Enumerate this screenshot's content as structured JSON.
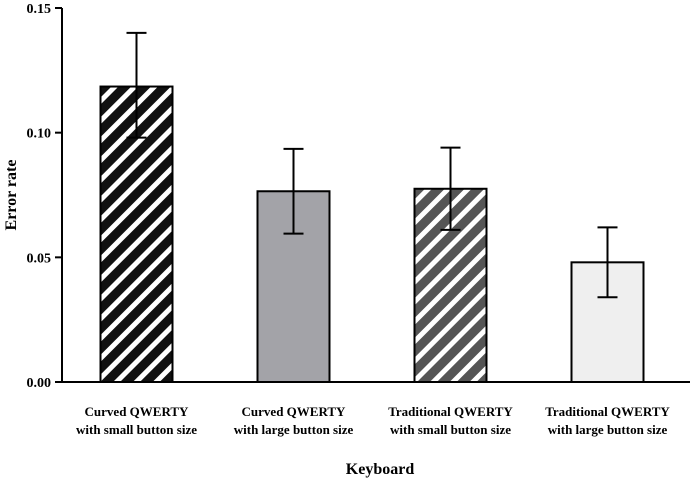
{
  "chart_data": {
    "type": "bar",
    "title": "",
    "xlabel": "Keyboard",
    "ylabel": "Error rate",
    "ylim": [
      0,
      0.15
    ],
    "yticks": [
      "0.00",
      "0.05",
      "0.10",
      "0.15"
    ],
    "ytick_values": [
      0,
      0.05,
      0.1,
      0.15
    ],
    "grid": false,
    "legend": "none",
    "categories": [
      [
        "Curved QWERTY",
        "with small button size"
      ],
      [
        "Curved QWERTY",
        "with large button size"
      ],
      [
        "Traditional QWERTY",
        "with small button size"
      ],
      [
        "Traditional QWERTY",
        "with large button size"
      ]
    ],
    "values": [
      0.1185,
      0.0765,
      0.0775,
      0.048
    ],
    "error_low": [
      0.098,
      0.0595,
      0.061,
      0.034
    ],
    "error_high": [
      0.14,
      0.0935,
      0.094,
      0.062
    ],
    "bar_styles": [
      {
        "fill": "#111111",
        "hatch": "#ffffff"
      },
      {
        "fill": "#a3a3a8",
        "hatch": null
      },
      {
        "fill": "#555555",
        "hatch": "#ffffff"
      },
      {
        "fill": "#efefef",
        "hatch": null
      }
    ]
  }
}
